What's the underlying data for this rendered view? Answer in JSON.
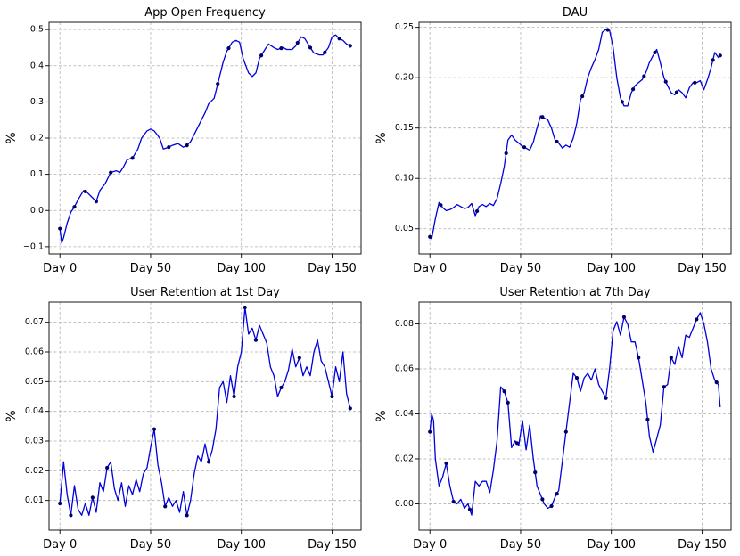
{
  "chart_data": [
    {
      "type": "line",
      "title": "App Open Frequency",
      "ylabel": "%",
      "xlabel": "",
      "xlim": [
        -6,
        166
      ],
      "ylim": [
        -0.12,
        0.52
      ],
      "xticks": [
        0,
        50,
        100,
        150
      ],
      "xtick_labels": [
        "Day 0",
        "Day 50",
        "Day 100",
        "Day 150"
      ],
      "yticks": [
        -0.1,
        0.0,
        0.1,
        0.2,
        0.3,
        0.4,
        0.5
      ],
      "ytick_labels": [
        "−0.1",
        "0.0",
        "0.1",
        "0.2",
        "0.3",
        "0.4",
        "0.5"
      ],
      "grid": true,
      "line_color": "#0000dd",
      "marker_color": "#000066",
      "x": [
        0,
        1,
        2,
        4,
        6,
        8,
        10,
        13,
        15,
        18,
        20,
        22,
        25,
        28,
        31,
        33,
        35,
        37,
        40,
        43,
        45,
        48,
        50,
        52,
        55,
        57,
        60,
        62,
        65,
        68,
        70,
        72,
        74,
        76,
        78,
        80,
        82,
        85,
        88,
        90,
        92,
        95,
        97,
        99,
        101,
        104,
        106,
        108,
        110,
        113,
        115,
        118,
        120,
        123,
        125,
        128,
        130,
        133,
        135,
        138,
        140,
        143,
        145,
        148,
        150,
        152,
        154,
        156,
        158,
        160
      ],
      "y": [
        -0.05,
        -0.09,
        -0.075,
        -0.035,
        -0.005,
        0.01,
        0.03,
        0.055,
        0.05,
        0.035,
        0.025,
        0.055,
        0.075,
        0.105,
        0.11,
        0.105,
        0.12,
        0.14,
        0.145,
        0.17,
        0.2,
        0.22,
        0.225,
        0.22,
        0.2,
        0.17,
        0.175,
        0.18,
        0.185,
        0.175,
        0.18,
        0.19,
        0.21,
        0.23,
        0.25,
        0.27,
        0.295,
        0.31,
        0.37,
        0.41,
        0.44,
        0.465,
        0.47,
        0.465,
        0.42,
        0.38,
        0.37,
        0.38,
        0.42,
        0.445,
        0.46,
        0.45,
        0.445,
        0.45,
        0.445,
        0.445,
        0.455,
        0.48,
        0.475,
        0.45,
        0.435,
        0.43,
        0.43,
        0.45,
        0.48,
        0.485,
        0.475,
        0.47,
        0.46,
        0.455
      ],
      "markers_at": [
        0,
        8,
        14,
        20,
        28,
        40,
        60,
        70,
        87,
        93,
        111,
        122,
        131,
        138,
        146,
        154,
        160
      ]
    },
    {
      "type": "line",
      "title": "DAU",
      "ylabel": "%",
      "xlabel": "",
      "xlim": [
        -6,
        166
      ],
      "ylim": [
        0.025,
        0.255
      ],
      "xticks": [
        0,
        50,
        100,
        150
      ],
      "xtick_labels": [
        "Day 0",
        "Day 50",
        "Day 100",
        "Day 150"
      ],
      "yticks": [
        0.05,
        0.1,
        0.15,
        0.2,
        0.25
      ],
      "ytick_labels": [
        "0.05",
        "0.10",
        "0.15",
        "0.20",
        "0.25"
      ],
      "grid": true,
      "line_color": "#0000dd",
      "marker_color": "#000066",
      "x": [
        0,
        1,
        3,
        5,
        7,
        9,
        11,
        13,
        15,
        17,
        19,
        21,
        23,
        25,
        27,
        29,
        31,
        33,
        35,
        37,
        39,
        41,
        43,
        45,
        47,
        49,
        51,
        53,
        55,
        57,
        59,
        61,
        63,
        65,
        67,
        69,
        71,
        73,
        75,
        77,
        79,
        81,
        83,
        85,
        87,
        89,
        91,
        93,
        95,
        97,
        99,
        101,
        103,
        105,
        107,
        109,
        111,
        113,
        115,
        117,
        119,
        121,
        123,
        125,
        127,
        129,
        131,
        133,
        135,
        137,
        139,
        141,
        143,
        145,
        147,
        149,
        151,
        153,
        155,
        157,
        159,
        160
      ],
      "y": [
        0.042,
        0.04,
        0.06,
        0.076,
        0.071,
        0.068,
        0.069,
        0.071,
        0.074,
        0.072,
        0.07,
        0.071,
        0.075,
        0.063,
        0.072,
        0.074,
        0.072,
        0.075,
        0.073,
        0.08,
        0.095,
        0.112,
        0.138,
        0.143,
        0.138,
        0.135,
        0.132,
        0.13,
        0.128,
        0.136,
        0.15,
        0.162,
        0.16,
        0.158,
        0.15,
        0.138,
        0.135,
        0.13,
        0.133,
        0.131,
        0.14,
        0.155,
        0.178,
        0.185,
        0.2,
        0.21,
        0.218,
        0.228,
        0.245,
        0.248,
        0.247,
        0.23,
        0.2,
        0.18,
        0.172,
        0.172,
        0.185,
        0.192,
        0.195,
        0.198,
        0.205,
        0.215,
        0.222,
        0.228,
        0.215,
        0.2,
        0.192,
        0.185,
        0.183,
        0.188,
        0.185,
        0.18,
        0.19,
        0.195,
        0.195,
        0.197,
        0.188,
        0.198,
        0.21,
        0.225,
        0.22,
        0.222
      ],
      "markers_at": [
        0,
        6,
        26,
        42,
        52,
        62,
        70,
        84,
        98,
        106,
        112,
        118,
        124,
        130,
        136,
        146,
        156,
        160
      ]
    },
    {
      "type": "line",
      "title": "User Retention at 1st Day",
      "ylabel": "%",
      "xlabel": "",
      "xlim": [
        -6,
        166
      ],
      "ylim": [
        0.0,
        0.0768
      ],
      "xticks": [
        0,
        50,
        100,
        150
      ],
      "xtick_labels": [
        "Day 0",
        "Day 50",
        "Day 100",
        "Day 150"
      ],
      "yticks": [
        0.01,
        0.02,
        0.03,
        0.04,
        0.05,
        0.06,
        0.07
      ],
      "ytick_labels": [
        "0.01",
        "0.02",
        "0.03",
        "0.04",
        "0.05",
        "0.06",
        "0.07"
      ],
      "grid": true,
      "line_color": "#0000dd",
      "marker_color": "#000066",
      "x": [
        0,
        2,
        4,
        6,
        8,
        10,
        12,
        14,
        16,
        18,
        20,
        22,
        24,
        26,
        28,
        30,
        32,
        34,
        36,
        38,
        40,
        42,
        44,
        46,
        48,
        50,
        52,
        54,
        56,
        58,
        60,
        62,
        64,
        66,
        68,
        70,
        72,
        74,
        76,
        78,
        80,
        82,
        84,
        86,
        88,
        90,
        92,
        94,
        96,
        98,
        100,
        102,
        104,
        106,
        108,
        110,
        112,
        114,
        116,
        118,
        120,
        122,
        124,
        126,
        128,
        130,
        132,
        134,
        136,
        138,
        140,
        142,
        144,
        146,
        148,
        150,
        152,
        154,
        156,
        158,
        160
      ],
      "y": [
        0.009,
        0.023,
        0.012,
        0.005,
        0.015,
        0.007,
        0.005,
        0.009,
        0.005,
        0.011,
        0.006,
        0.016,
        0.013,
        0.021,
        0.023,
        0.014,
        0.01,
        0.016,
        0.008,
        0.015,
        0.012,
        0.017,
        0.013,
        0.019,
        0.021,
        0.028,
        0.034,
        0.022,
        0.016,
        0.008,
        0.011,
        0.008,
        0.01,
        0.006,
        0.013,
        0.005,
        0.01,
        0.019,
        0.025,
        0.023,
        0.029,
        0.023,
        0.027,
        0.034,
        0.048,
        0.05,
        0.043,
        0.052,
        0.045,
        0.055,
        0.06,
        0.075,
        0.066,
        0.068,
        0.064,
        0.069,
        0.066,
        0.063,
        0.055,
        0.052,
        0.045,
        0.048,
        0.05,
        0.054,
        0.061,
        0.055,
        0.058,
        0.052,
        0.055,
        0.052,
        0.06,
        0.064,
        0.057,
        0.055,
        0.05,
        0.045,
        0.055,
        0.05,
        0.06,
        0.046,
        0.041
      ],
      "markers_at": [
        0,
        6,
        18,
        26,
        52,
        58,
        70,
        82,
        96,
        102,
        108,
        122,
        132,
        150,
        160
      ]
    },
    {
      "type": "line",
      "title": "User Retention at 7th Day",
      "ylabel": "%",
      "xlabel": "",
      "xlim": [
        -6,
        166
      ],
      "ylim": [
        -0.0117,
        0.0897
      ],
      "xticks": [
        0,
        50,
        100,
        150
      ],
      "xtick_labels": [
        "Day 0",
        "Day 50",
        "Day 100",
        "Day 150"
      ],
      "yticks": [
        0.0,
        0.02,
        0.04,
        0.06,
        0.08
      ],
      "ytick_labels": [
        "0.00",
        "0.02",
        "0.04",
        "0.06",
        "0.08"
      ],
      "grid": true,
      "line_color": "#0000dd",
      "marker_color": "#000066",
      "x": [
        0,
        1,
        2,
        3,
        5,
        7,
        9,
        11,
        13,
        15,
        17,
        19,
        21,
        23,
        25,
        27,
        29,
        31,
        33,
        35,
        37,
        39,
        41,
        43,
        45,
        47,
        49,
        51,
        53,
        55,
        57,
        59,
        61,
        63,
        65,
        67,
        69,
        71,
        73,
        75,
        77,
        79,
        81,
        83,
        85,
        87,
        89,
        91,
        93,
        95,
        97,
        99,
        101,
        103,
        105,
        107,
        109,
        111,
        113,
        115,
        117,
        119,
        121,
        123,
        125,
        127,
        129,
        131,
        133,
        135,
        137,
        139,
        141,
        143,
        145,
        147,
        149,
        151,
        153,
        155,
        157,
        159,
        160
      ],
      "y": [
        0.032,
        0.04,
        0.037,
        0.02,
        0.008,
        0.012,
        0.018,
        0.008,
        0.001,
        0.0,
        0.002,
        -0.002,
        0.0,
        -0.005,
        0.01,
        0.008,
        0.01,
        0.01,
        0.005,
        0.015,
        0.028,
        0.052,
        0.05,
        0.045,
        0.025,
        0.028,
        0.026,
        0.037,
        0.024,
        0.035,
        0.02,
        0.008,
        0.004,
        0.0,
        -0.002,
        -0.001,
        0.003,
        0.006,
        0.019,
        0.032,
        0.045,
        0.058,
        0.056,
        0.05,
        0.056,
        0.058,
        0.055,
        0.06,
        0.053,
        0.05,
        0.047,
        0.06,
        0.077,
        0.081,
        0.075,
        0.083,
        0.08,
        0.072,
        0.072,
        0.065,
        0.055,
        0.045,
        0.03,
        0.023,
        0.029,
        0.035,
        0.052,
        0.053,
        0.065,
        0.062,
        0.07,
        0.065,
        0.075,
        0.074,
        0.078,
        0.082,
        0.085,
        0.08,
        0.072,
        0.06,
        0.055,
        0.053,
        0.043
      ],
      "markers_at": [
        0,
        9,
        13,
        22,
        41,
        43,
        48,
        58,
        62,
        67,
        70,
        75,
        81,
        97,
        107,
        115,
        120,
        129,
        133,
        147,
        158
      ]
    }
  ]
}
